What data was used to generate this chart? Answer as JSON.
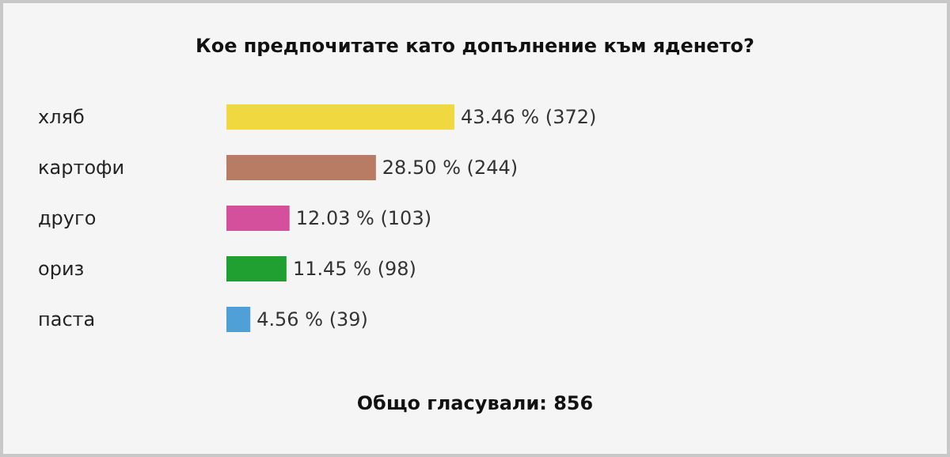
{
  "chart_data": {
    "type": "bar",
    "orientation": "horizontal",
    "title": "Кое предпочитате като допълнение към яденето?",
    "categories": [
      "хляб",
      "картофи",
      "друго",
      "ориз",
      "паста"
    ],
    "values": [
      43.46,
      28.5,
      12.03,
      11.45,
      4.56
    ],
    "colors": [
      "#f0d840",
      "#b87c64",
      "#d4509c",
      "#20a030",
      "#50a0d8"
    ],
    "value_labels": [
      "43.46 % (372)",
      "28.50 % (244)",
      "12.03 % (103)",
      "11.45 % (98)",
      "4.56 % (39)"
    ],
    "annotations": [
      "Общо гласували: 856"
    ]
  }
}
